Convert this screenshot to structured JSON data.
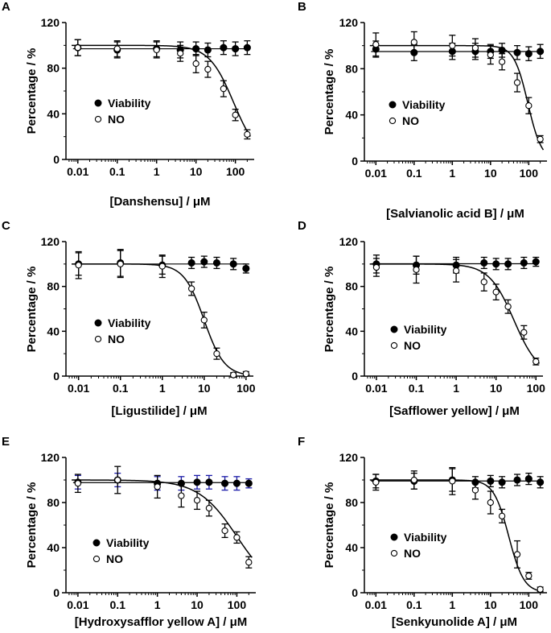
{
  "chart_data": [
    {
      "panel": "A",
      "type": "scatter",
      "xscale": "log",
      "xlim": [
        0.005,
        300
      ],
      "ylim": [
        0,
        120
      ],
      "xticks": [
        "0.01",
        "0.1",
        "1",
        "10",
        "100"
      ],
      "yticks": [
        "0",
        "40",
        "80",
        "120"
      ],
      "xlabel": "[Danshensu] / μM",
      "ylabel": "Percentage / %",
      "legend": [
        "Viability",
        "NO"
      ],
      "legend_position": "middle-left",
      "series": [
        {
          "name": "Viability",
          "marker": "filled-circle",
          "x": [
            0.01,
            0.1,
            1,
            4,
            10,
            20,
            50,
            100,
            200
          ],
          "y": [
            98,
            96,
            97,
            96,
            97,
            96,
            98,
            97,
            98
          ],
          "err": [
            7,
            7,
            7,
            7,
            6,
            6,
            6,
            6,
            6
          ]
        },
        {
          "name": "NO",
          "marker": "open-circle",
          "x": [
            0.01,
            0.1,
            1,
            4,
            10,
            20,
            50,
            100,
            200
          ],
          "y": [
            98,
            97,
            96,
            93,
            84,
            79,
            62,
            39,
            22
          ],
          "err": [
            7,
            7,
            7,
            7,
            8,
            7,
            7,
            5,
            4
          ]
        }
      ],
      "fit": {
        "series": "NO",
        "top": 100,
        "bottom": 0,
        "ic50": 90,
        "hill": 1.4
      }
    },
    {
      "panel": "B",
      "type": "scatter",
      "xscale": "log",
      "xlim": [
        0.005,
        300
      ],
      "ylim": [
        0,
        120
      ],
      "xticks": [
        "0.01",
        "0.1",
        "1",
        "10",
        "100"
      ],
      "yticks": [
        "0",
        "40",
        "80",
        "120"
      ],
      "xlabel": "[Salvianolic acid B] / μM",
      "ylabel": "Percentage / %",
      "legend": [
        "Viability",
        "NO"
      ],
      "legend_position": "middle-left",
      "series": [
        {
          "name": "Viability",
          "marker": "filled-circle",
          "x": [
            0.01,
            0.1,
            1,
            4,
            10,
            20,
            50,
            100,
            200
          ],
          "y": [
            97,
            94,
            95,
            95,
            95,
            96,
            94,
            93,
            95
          ],
          "err": [
            7,
            7,
            7,
            7,
            6,
            6,
            6,
            6,
            6
          ]
        },
        {
          "name": "NO",
          "marker": "open-circle",
          "x": [
            0.01,
            0.1,
            1,
            4,
            10,
            20,
            50,
            100,
            200
          ],
          "y": [
            101,
            103,
            100,
            98,
            92,
            86,
            68,
            48,
            19
          ],
          "err": [
            10,
            9,
            9,
            8,
            8,
            7,
            8,
            7,
            3
          ]
        }
      ],
      "fit": {
        "series": "NO",
        "top": 100,
        "bottom": 0,
        "ic50": 95,
        "hill": 2.4
      }
    },
    {
      "panel": "C",
      "type": "scatter",
      "xscale": "log",
      "xlim": [
        0.005,
        150
      ],
      "ylim": [
        0,
        120
      ],
      "xticks": [
        "0.01",
        "0.1",
        "1",
        "10",
        "100"
      ],
      "yticks": [
        "0",
        "40",
        "80",
        "120"
      ],
      "xlabel": "[Ligustilide] / μM",
      "ylabel": "Percentage / %",
      "legend": [
        "Viability",
        "NO"
      ],
      "legend_position": "middle-left",
      "series": [
        {
          "name": "Viability",
          "marker": "filled-circle",
          "x": [
            0.01,
            0.1,
            1,
            5,
            10,
            20,
            50,
            100
          ],
          "y": [
            100,
            101,
            99,
            101,
            102,
            101,
            100,
            96
          ],
          "err": [
            10,
            12,
            8,
            5,
            5,
            5,
            5,
            4
          ]
        },
        {
          "name": "NO",
          "marker": "open-circle",
          "x": [
            0.01,
            0.1,
            1,
            5,
            10,
            20,
            50,
            100
          ],
          "y": [
            99,
            100,
            98,
            78,
            50,
            20,
            1,
            2
          ],
          "err": [
            12,
            12,
            10,
            6,
            7,
            5,
            2,
            2
          ]
        }
      ],
      "fit": {
        "series": "NO",
        "top": 100,
        "bottom": 0,
        "ic50": 10,
        "hill": 1.8
      }
    },
    {
      "panel": "D",
      "type": "scatter",
      "xscale": "log",
      "xlim": [
        0.005,
        150
      ],
      "ylim": [
        0,
        120
      ],
      "xticks": [
        "0.01",
        "0.1",
        "1",
        "10",
        "100"
      ],
      "yticks": [
        "0",
        "40",
        "80",
        "120"
      ],
      "xlabel": "[Safflower yellow] / μM",
      "ylabel": "Percentage / %",
      "legend": [
        "Viability",
        "NO"
      ],
      "legend_position": "middle-right",
      "series": [
        {
          "name": "Viability",
          "marker": "filled-circle",
          "x": [
            0.01,
            0.1,
            1,
            5,
            10,
            20,
            50,
            100
          ],
          "y": [
            100,
            99,
            99,
            101,
            100,
            100,
            101,
            102
          ],
          "err": [
            8,
            8,
            7,
            5,
            5,
            5,
            5,
            4
          ]
        },
        {
          "name": "NO",
          "marker": "open-circle",
          "x": [
            0.01,
            0.1,
            1,
            5,
            10,
            20,
            50,
            100
          ],
          "y": [
            97,
            95,
            94,
            84,
            75,
            62,
            39,
            13
          ],
          "err": [
            8,
            12,
            10,
            8,
            7,
            6,
            6,
            3
          ]
        }
      ],
      "fit": {
        "series": "NO",
        "top": 100,
        "bottom": 0,
        "ic50": 28,
        "hill": 1.4
      }
    },
    {
      "panel": "E",
      "type": "scatter",
      "xscale": "log",
      "xlim": [
        0.005,
        300
      ],
      "ylim": [
        0,
        120
      ],
      "xticks": [
        "0.01",
        "0.1",
        "1",
        "10",
        "100"
      ],
      "yticks": [
        "0",
        "40",
        "80",
        "120"
      ],
      "xlabel": "[Hydroxysafflor yellow A]  / μM",
      "ylabel": "Percentage / %",
      "legend": [
        "Viability",
        "NO"
      ],
      "legend_position": "middle-left",
      "series": [
        {
          "name": "Viability",
          "marker": "filled-circle",
          "x": [
            0.01,
            0.1,
            1,
            4,
            10,
            20,
            50,
            100,
            200
          ],
          "y": [
            98,
            100,
            97,
            97,
            98,
            98,
            97,
            97,
            97
          ],
          "err": [
            6,
            6,
            6,
            6,
            6,
            6,
            6,
            6,
            4
          ]
        },
        {
          "name": "NO",
          "marker": "open-circle",
          "x": [
            0.01,
            0.1,
            1,
            4,
            10,
            20,
            50,
            100,
            200
          ],
          "y": [
            97,
            100,
            94,
            86,
            82,
            75,
            55,
            49,
            27
          ],
          "err": [
            8,
            12,
            10,
            10,
            8,
            7,
            6,
            5,
            5
          ]
        }
      ],
      "fit": {
        "series": "NO",
        "top": 100,
        "bottom": 0,
        "ic50": 100,
        "hill": 0.9
      }
    },
    {
      "panel": "F",
      "type": "scatter",
      "xscale": "log",
      "xlim": [
        0.005,
        300
      ],
      "ylim": [
        0,
        120
      ],
      "xticks": [
        "0.01",
        "0.1",
        "1",
        "10",
        "100"
      ],
      "yticks": [
        "0",
        "40",
        "80",
        "120"
      ],
      "xlabel": "[Senkyunolide A] / μM",
      "ylabel": "Percentage / %",
      "legend": [
        "Viability",
        "NO"
      ],
      "legend_position": "middle-right",
      "series": [
        {
          "name": "Viability",
          "marker": "filled-circle",
          "x": [
            0.01,
            0.1,
            1,
            4,
            10,
            20,
            50,
            100,
            200
          ],
          "y": [
            99,
            99,
            100,
            98,
            99,
            98,
            100,
            101,
            98
          ],
          "err": [
            6,
            7,
            10,
            5,
            5,
            5,
            5,
            5,
            5
          ]
        },
        {
          "name": "NO",
          "marker": "open-circle",
          "x": [
            0.01,
            0.1,
            1,
            4,
            10,
            20,
            50,
            100,
            200
          ],
          "y": [
            98,
            100,
            99,
            91,
            80,
            68,
            34,
            15,
            3
          ],
          "err": [
            7,
            8,
            12,
            8,
            10,
            6,
            12,
            3,
            2
          ]
        }
      ],
      "fit": {
        "series": "NO",
        "top": 100,
        "bottom": 0,
        "ic50": 30,
        "hill": 2.2
      }
    }
  ]
}
